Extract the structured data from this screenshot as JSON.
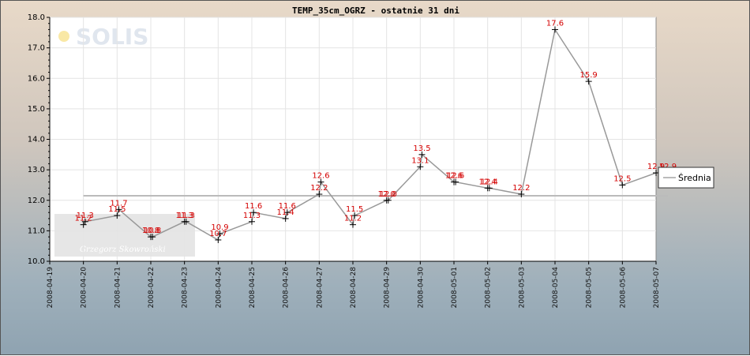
{
  "chart_data": {
    "type": "line",
    "title": "TEMP_35cm_OGRZ - ostatnie 31 dni",
    "ylim": [
      10.0,
      18.0
    ],
    "y_ticks": [
      "10.0",
      "11.0",
      "12.0",
      "13.0",
      "14.0",
      "15.0",
      "16.0",
      "17.0",
      "18.0"
    ],
    "x_ticks": [
      "2008-04-19",
      "2008-04-20",
      "2008-04-21",
      "2008-04-22",
      "2008-04-23",
      "2008-04-24",
      "2008-04-25",
      "2008-04-26",
      "2008-04-27",
      "2008-04-28",
      "2008-04-29",
      "2008-04-30",
      "2008-05-01",
      "2008-05-02",
      "2008-05-03",
      "2008-05-04",
      "2008-05-05",
      "2008-05-06",
      "2008-05-07"
    ],
    "grid": true,
    "legend_position": "right",
    "series": [
      {
        "name": "",
        "color": "#999999",
        "x": [
          1.0,
          1.05,
          2.0,
          2.05,
          3.0,
          3.05,
          4.0,
          4.05,
          5.0,
          5.05,
          6.0,
          6.05,
          7.0,
          7.05,
          8.0,
          8.05,
          9.0,
          9.05,
          10.0,
          10.05,
          11.0,
          11.05,
          12.0,
          12.05,
          13.0,
          13.05,
          14.0,
          15.0,
          16.0,
          17.0,
          18.0,
          18.35
        ],
        "y": [
          11.2,
          11.3,
          11.5,
          11.7,
          10.8,
          10.8,
          11.3,
          11.3,
          10.7,
          10.9,
          11.3,
          11.6,
          11.4,
          11.6,
          12.2,
          12.6,
          11.2,
          11.5,
          12.0,
          12.0,
          13.1,
          13.5,
          12.6,
          12.6,
          12.4,
          12.4,
          12.2,
          17.6,
          15.9,
          12.5,
          12.9,
          12.9
        ],
        "labels": [
          "11.2",
          "11.3",
          "11.5",
          "11.7",
          "10.8",
          "10.8",
          "11.3",
          "11.3",
          "10.7",
          "10.9",
          "11.3",
          "11.6",
          "11.4",
          "11.6",
          "12.2",
          "12.6",
          "11.2",
          "11.5",
          "12.0",
          "12.0",
          "13.1",
          "13.5",
          "12.6",
          "12.6",
          "12.4",
          "12.4",
          "12.2",
          "17.6",
          "15.9",
          "12.5",
          "12.9",
          "12.9"
        ]
      },
      {
        "name": "Średnia",
        "color": "#bbbbbb",
        "x": [
          1.0,
          18.35
        ],
        "y": [
          12.15,
          12.15
        ]
      }
    ]
  },
  "watermark": {
    "logo_text": "SOLIS",
    "signature": "Grzegorz Skowroński"
  }
}
